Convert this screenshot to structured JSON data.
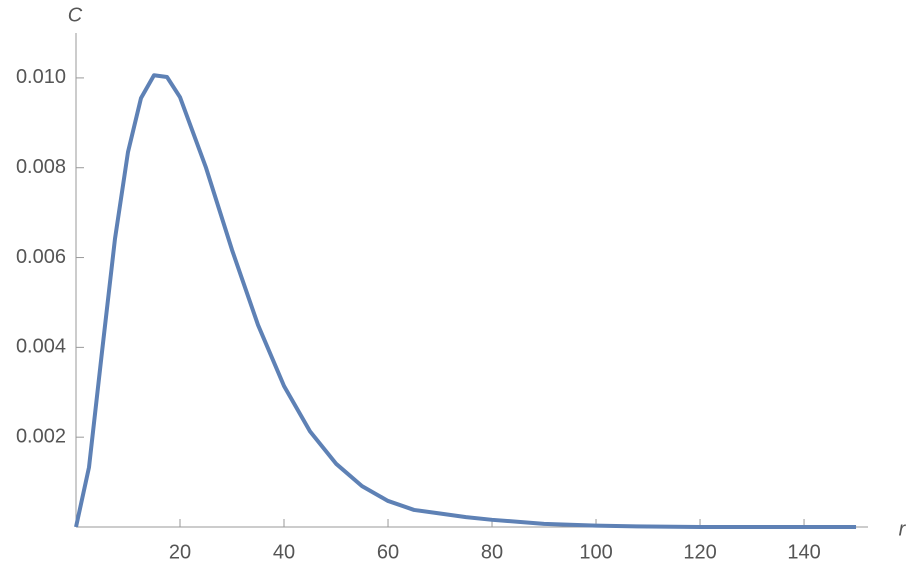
{
  "chart_data": {
    "type": "line",
    "x_label": "r",
    "y_label": "C",
    "x": [
      0,
      2.5,
      5,
      7.5,
      10,
      12.5,
      15,
      17.5,
      20,
      25,
      30,
      35,
      40,
      45,
      50,
      55,
      60,
      65,
      70,
      75,
      80,
      90,
      100,
      110,
      120,
      130,
      140,
      150
    ],
    "series": [
      {
        "name": "C(r)",
        "color": "#5e81b5",
        "values": [
          0,
          0.00133,
          0.0039,
          0.00642,
          0.00835,
          0.00955,
          0.01006,
          0.01002,
          0.00957,
          0.008,
          0.00617,
          0.0045,
          0.00314,
          0.00213,
          0.00141,
          0.00091,
          0.00058,
          0.00038,
          0.0003,
          0.00022,
          0.00016,
          7e-05,
          3e-05,
          1e-05,
          0,
          0,
          0,
          0
        ]
      }
    ],
    "xlim": [
      0,
      152.3
    ],
    "ylim": [
      0,
      0.011
    ],
    "xticks": [
      20,
      40,
      60,
      80,
      100,
      120,
      140
    ],
    "yticks": [
      0.002,
      0.004,
      0.006,
      0.008,
      {
        "value": 0.01,
        "label": "0.010"
      }
    ]
  }
}
